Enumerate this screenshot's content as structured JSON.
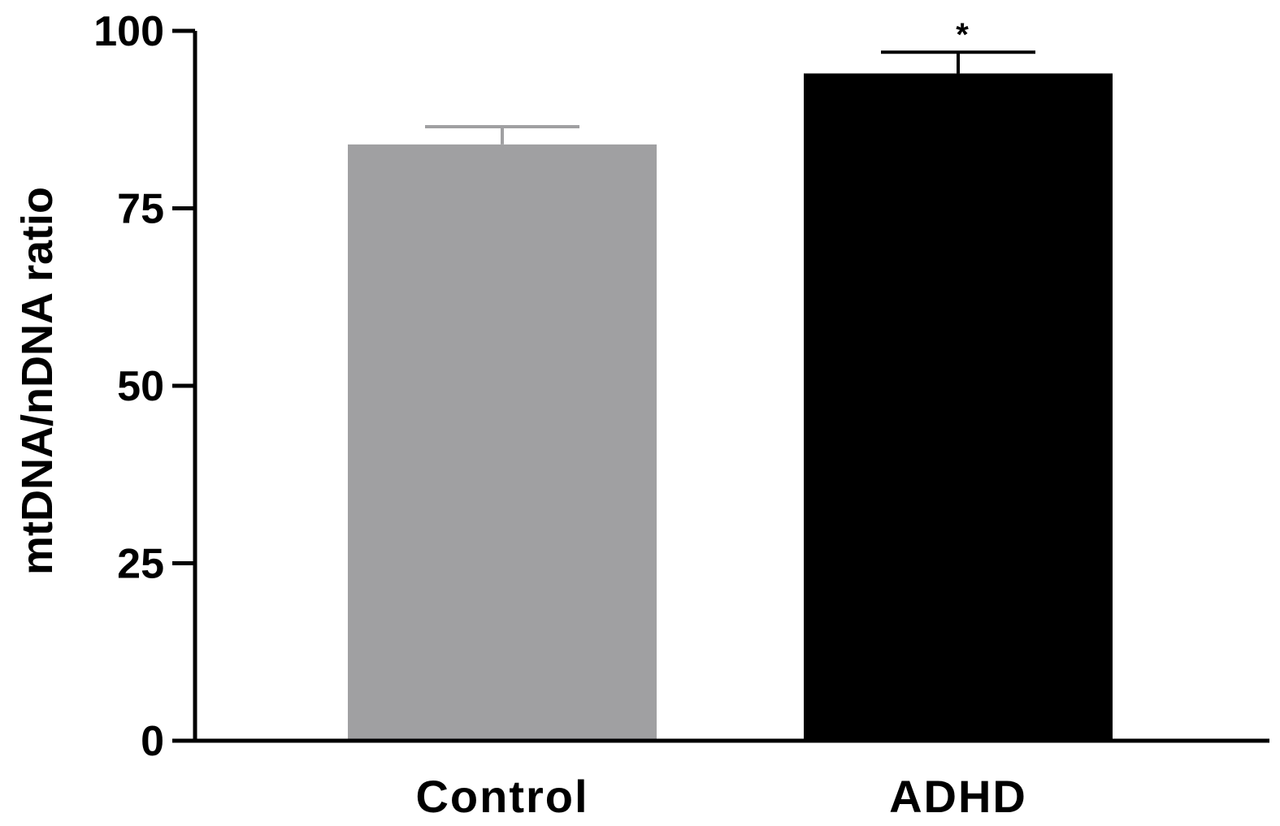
{
  "chart_data": {
    "type": "bar",
    "categories": [
      "Control",
      "ADHD"
    ],
    "values": [
      84,
      94
    ],
    "errors": [
      2.5,
      3
    ],
    "significance": [
      "",
      "*"
    ],
    "ylabel": "mtDNA/nDNA ratio",
    "xlabel": "",
    "ylim": [
      0,
      100
    ],
    "yticks": [
      0,
      25,
      50,
      75,
      100
    ],
    "ytick_labels": [
      "0",
      "25",
      "50",
      "75",
      "100"
    ],
    "grid": false,
    "bar_colors": [
      "#a0a0a2",
      "#000000"
    ]
  }
}
